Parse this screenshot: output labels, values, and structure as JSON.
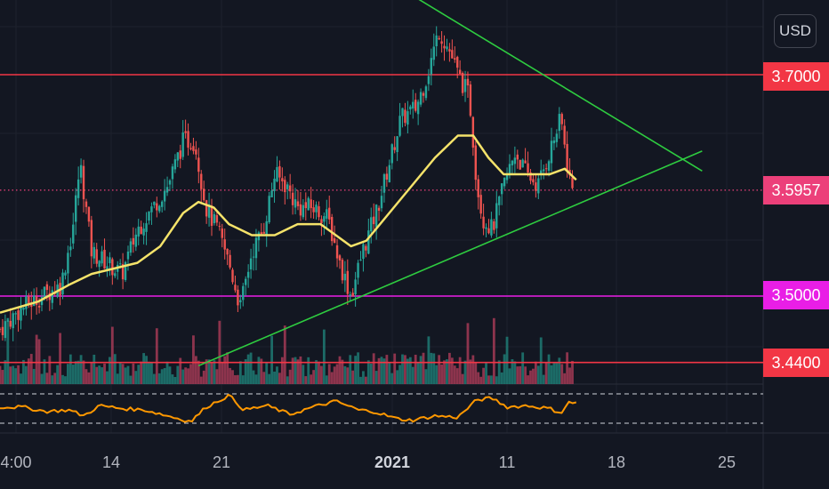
{
  "currency": "USD",
  "price_tags": [
    {
      "label": "3.7000",
      "color": "#f23645"
    },
    {
      "label": "3.5957",
      "color": "#ec407a"
    },
    {
      "label": "3.5000",
      "color": "#e91ee6"
    },
    {
      "label": "3.4400",
      "color": "#f23645"
    }
  ],
  "time_axis": [
    {
      "label": "4:00",
      "bold": false
    },
    {
      "label": "14",
      "bold": false
    },
    {
      "label": "21",
      "bold": false
    },
    {
      "label": "2021",
      "bold": true
    },
    {
      "label": "11",
      "bold": false
    },
    {
      "label": "18",
      "bold": false
    },
    {
      "label": "25",
      "bold": false
    }
  ],
  "colors": {
    "background": "#131722",
    "up": "#26a69a",
    "down": "#ef5350",
    "ma": "#f5e36a",
    "trendline": "#2ecc40",
    "oscillator": "#ff9800",
    "resistance": "#f23645",
    "support": "#e91ee6"
  },
  "chart_data": {
    "type": "candlestick",
    "price_range": [
      3.39,
      3.79
    ],
    "horizontal_levels": [
      {
        "price": 3.7,
        "color": "#f23645",
        "style": "solid"
      },
      {
        "price": 3.5957,
        "color": "#ec407a",
        "style": "dotted"
      },
      {
        "price": 3.5,
        "color": "#e91ee6",
        "style": "solid"
      },
      {
        "price": 3.44,
        "color": "#f23645",
        "style": "solid"
      }
    ],
    "trendlines": [
      {
        "from": [
          0.26,
          3.437
        ],
        "to": [
          0.92,
          3.631
        ]
      },
      {
        "from": [
          0.525,
          3.778
        ],
        "to": [
          0.92,
          3.613
        ]
      }
    ],
    "close_path": [
      [
        0.0,
        3.47
      ],
      [
        0.03,
        3.49
      ],
      [
        0.055,
        3.5
      ],
      [
        0.08,
        3.51
      ],
      [
        0.095,
        3.56
      ],
      [
        0.105,
        3.62
      ],
      [
        0.12,
        3.54
      ],
      [
        0.14,
        3.53
      ],
      [
        0.16,
        3.52
      ],
      [
        0.18,
        3.56
      ],
      [
        0.2,
        3.58
      ],
      [
        0.22,
        3.6
      ],
      [
        0.24,
        3.64
      ],
      [
        0.255,
        3.64
      ],
      [
        0.27,
        3.58
      ],
      [
        0.285,
        3.56
      ],
      [
        0.3,
        3.53
      ],
      [
        0.315,
        3.49
      ],
      [
        0.33,
        3.54
      ],
      [
        0.345,
        3.56
      ],
      [
        0.36,
        3.61
      ],
      [
        0.375,
        3.6
      ],
      [
        0.39,
        3.58
      ],
      [
        0.41,
        3.58
      ],
      [
        0.43,
        3.57
      ],
      [
        0.445,
        3.53
      ],
      [
        0.46,
        3.5
      ],
      [
        0.475,
        3.54
      ],
      [
        0.495,
        3.58
      ],
      [
        0.51,
        3.62
      ],
      [
        0.525,
        3.66
      ],
      [
        0.545,
        3.67
      ],
      [
        0.56,
        3.7
      ],
      [
        0.575,
        3.74
      ],
      [
        0.59,
        3.72
      ],
      [
        0.6,
        3.7
      ],
      [
        0.615,
        3.68
      ],
      [
        0.625,
        3.6
      ],
      [
        0.633,
        3.57
      ],
      [
        0.645,
        3.56
      ],
      [
        0.66,
        3.6
      ],
      [
        0.675,
        3.63
      ],
      [
        0.69,
        3.61
      ],
      [
        0.705,
        3.6
      ],
      [
        0.72,
        3.63
      ],
      [
        0.735,
        3.66
      ],
      [
        0.745,
        3.61
      ],
      [
        0.75,
        3.5957
      ]
    ],
    "ma_path": [
      [
        0.0,
        3.485
      ],
      [
        0.05,
        3.495
      ],
      [
        0.09,
        3.51
      ],
      [
        0.12,
        3.52
      ],
      [
        0.15,
        3.525
      ],
      [
        0.18,
        3.53
      ],
      [
        0.21,
        3.545
      ],
      [
        0.24,
        3.575
      ],
      [
        0.26,
        3.585
      ],
      [
        0.28,
        3.58
      ],
      [
        0.3,
        3.565
      ],
      [
        0.33,
        3.555
      ],
      [
        0.36,
        3.555
      ],
      [
        0.39,
        3.565
      ],
      [
        0.42,
        3.565
      ],
      [
        0.44,
        3.555
      ],
      [
        0.46,
        3.545
      ],
      [
        0.48,
        3.55
      ],
      [
        0.51,
        3.575
      ],
      [
        0.54,
        3.6
      ],
      [
        0.57,
        3.625
      ],
      [
        0.6,
        3.645
      ],
      [
        0.62,
        3.645
      ],
      [
        0.64,
        3.625
      ],
      [
        0.66,
        3.61
      ],
      [
        0.69,
        3.61
      ],
      [
        0.72,
        3.61
      ],
      [
        0.74,
        3.615
      ],
      [
        0.755,
        3.605
      ]
    ],
    "oscillator": [
      [
        0.0,
        0.55
      ],
      [
        0.03,
        0.55
      ],
      [
        0.06,
        0.4
      ],
      [
        0.09,
        0.45
      ],
      [
        0.11,
        0.25
      ],
      [
        0.13,
        0.6
      ],
      [
        0.16,
        0.5
      ],
      [
        0.19,
        0.45
      ],
      [
        0.22,
        0.25
      ],
      [
        0.25,
        0.05
      ],
      [
        0.27,
        0.55
      ],
      [
        0.3,
        0.95
      ],
      [
        0.32,
        0.45
      ],
      [
        0.35,
        0.6
      ],
      [
        0.38,
        0.3
      ],
      [
        0.41,
        0.55
      ],
      [
        0.44,
        0.75
      ],
      [
        0.47,
        0.45
      ],
      [
        0.49,
        0.4
      ],
      [
        0.52,
        0.15
      ],
      [
        0.54,
        0.1
      ],
      [
        0.57,
        0.25
      ],
      [
        0.6,
        0.2
      ],
      [
        0.625,
        0.8
      ],
      [
        0.645,
        0.85
      ],
      [
        0.665,
        0.55
      ],
      [
        0.69,
        0.6
      ],
      [
        0.72,
        0.5
      ],
      [
        0.735,
        0.35
      ],
      [
        0.745,
        0.7
      ],
      [
        0.755,
        0.7
      ]
    ]
  }
}
